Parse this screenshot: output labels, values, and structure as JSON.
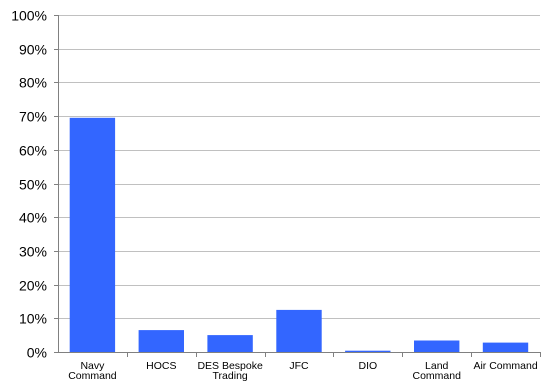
{
  "chart_data": {
    "type": "bar",
    "title": "",
    "xlabel": "",
    "ylabel": "",
    "categories": [
      [
        "Navy",
        "Command"
      ],
      [
        "HOCS"
      ],
      [
        "DES Bespoke",
        "Trading"
      ],
      [
        "JFC"
      ],
      [
        "DIO"
      ],
      [
        "Land",
        "Command"
      ],
      [
        "Air Command"
      ]
    ],
    "values": [
      69.5,
      6.5,
      5.0,
      12.5,
      0.4,
      3.4,
      2.8
    ],
    "ylim": [
      0,
      100
    ],
    "yticks": [
      "0%",
      "10%",
      "20%",
      "30%",
      "40%",
      "50%",
      "60%",
      "70%",
      "80%",
      "90%",
      "100%"
    ],
    "grid": true,
    "legend": "none",
    "colors": {
      "bar": "#3366FF",
      "grid": "#C0C0C0",
      "axis": "#808080"
    }
  }
}
